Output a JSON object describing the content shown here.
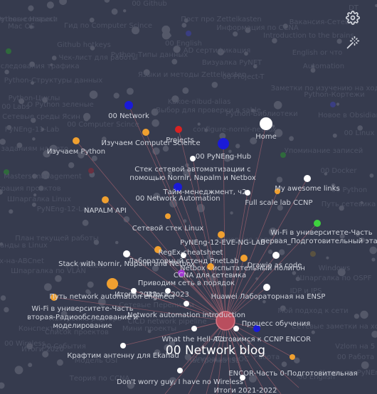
{
  "colors": {
    "background": "#363b4e",
    "faint_node": "#545869",
    "faint_text": "#4e5366",
    "edge": "#a0606e",
    "center": "#b94e5e",
    "orange": "#f0a030",
    "white": "#ffffff",
    "blue": "#1a1ad8",
    "red": "#d82222",
    "green": "#3ed13e",
    "purple": "#a036d0",
    "label": "#d0d3db",
    "big_label": "#ffffff"
  },
  "controls": {
    "settings_icon": "gear-icon",
    "magic_icon": "magic-wand-icon"
  },
  "graph": {
    "center_label": "00 Network blog",
    "nodes": [
      {
        "label": "00 Network",
        "color": "blue"
      },
      {
        "label": "Projects",
        "color": "red"
      },
      {
        "label": "Home",
        "color": "white"
      },
      {
        "label": "Изучаем Computer Science",
        "color": "orange"
      },
      {
        "label": "Изучаем Python",
        "color": "orange"
      },
      {
        "label": "00 PyNEng-Hub",
        "color": "blue"
      },
      {
        "label": "Стек сетевой автоматизации с помощью Nornir, Napalm и Netbox",
        "color": "white"
      },
      {
        "label": "Тайм-менеджмент, ч2",
        "color": "white"
      },
      {
        "label": "00 Network Automation",
        "color": "blue"
      },
      {
        "label": "My awesome links",
        "color": "white"
      },
      {
        "label": "Full scale lab CCNP",
        "color": "orange"
      },
      {
        "label": "NAPALM API",
        "color": "orange"
      },
      {
        "label": "Сетевой стек Linux",
        "color": "orange"
      },
      {
        "label": "Wi-Fi в университете-Часть первая_Подготовительный этап",
        "color": "green"
      },
      {
        "label": "PyNEng-12-EVE-NG-LAB",
        "color": "orange"
      },
      {
        "label": "RegEx-cheatsheet",
        "color": "orange"
      },
      {
        "label": "Stack with Nornir, Napalm and Netbox",
        "color": "white"
      },
      {
        "label": "Лабораторный стенд PnetLab",
        "color": "white"
      },
      {
        "label": "Netbox - испытательный полигон",
        "color": "orange"
      },
      {
        "label": "Drawio as code",
        "color": "white"
      },
      {
        "label": "CCNA для сетевика",
        "color": "purple"
      },
      {
        "label": "Приводим сеть в порядок",
        "color": "orange"
      },
      {
        "label": "Путь network automation engineer",
        "color": "orange"
      },
      {
        "label": "Итоги 2022",
        "color": "white"
      },
      {
        "label": "Итоги 2023",
        "color": "white"
      },
      {
        "label": "Huawei Лабораторная на ENSP",
        "color": "white"
      },
      {
        "label": "Network automation introduction",
        "color": "white"
      },
      {
        "label": "Wi-Fi в университете-Часть вторая-Радиообследование и моделирование",
        "color": "orange"
      },
      {
        "label": "Процесс обучения",
        "color": "blue"
      },
      {
        "label": "What the Hell-ACL",
        "color": "white"
      },
      {
        "label": "Готовимся к CCNP ENCOR",
        "color": "white"
      },
      {
        "label": "Крафтим антенну для Ekahau",
        "color": "white"
      },
      {
        "label": "ENCOR-Часть 0-Подготовительная",
        "color": "orange"
      },
      {
        "label": "Don't worry guy, I have no Wireless",
        "color": "white"
      },
      {
        "label": "Итоги 2021-2022",
        "color": "white"
      }
    ],
    "background_labels": [
      "Python-conspect",
      "00 Github",
      "Пост про Zettelkasten",
      "Информация по CCNA",
      "DT",
      "Гид по Computer Scince",
      "Introduction to the brains",
      "Github hotkeys",
      "00 English",
      "AD сертификация",
      "English or что",
      "Чек-лист для работы",
      "Python-Типы данных",
      "Визуалка PyNET",
      "Путь следования трафика",
      "Automation",
      "Языки и методы Zettelkasten",
      "Python-Структуры данных",
      "00 Project-T",
      "Заметки по изучению на ходу",
      "Python-Циклы",
      "Kakoe-nibud-alias",
      "O Python зеленые",
      "Выбор для проверки в sable",
      "Python-Кортежи",
      "00 Labs",
      "Python-Библиотеки",
      "Сетевые среды Ясин",
      "Новое в Obsidian",
      "PyNEng-11-Lab",
      "00 Computer Scince",
      "configure-nornir-netbox",
      "00 Linux",
      "Упоминание записей",
      "Пять идей по заданиям на лето",
      "Masters management",
      "00 Docker",
      "Интеграция проектов",
      "00 Python",
      "Шпаргалка Linux",
      "PyNEng-12-Lab",
      "Путь сетевика",
      "План текущей работы",
      "00 Команды в Linux",
      "00 Wireless",
      "Windows",
      "Linux-на-ABCnet",
      "Шпаргалка по VLAN",
      "Вечерние задачи",
      "Шпаргалка по OSPF",
      "Настройка роутера",
      "Мой подход к сети",
      "CICD network pipeline",
      "Список проектов",
      "Мини проекты",
      "Сетевые заметки на ходу",
      "00 Wireless",
      "Итоги 2020",
      "Vzlom на 5 лет",
      "Настройка ISE",
      "Курсы по PyNEng",
      "00 English",
      "Конспект RTX",
      "Теория по CCNA",
      "00 Работа",
      "Операции в ОС",
      "Сетевые Переписки",
      "Модель OSI",
      "IDP и IPS",
      "00 События",
      "Работа",
      "Mac OS",
      "Ваканcия-Сетевик",
      "Сетевые Навыки"
    ]
  }
}
